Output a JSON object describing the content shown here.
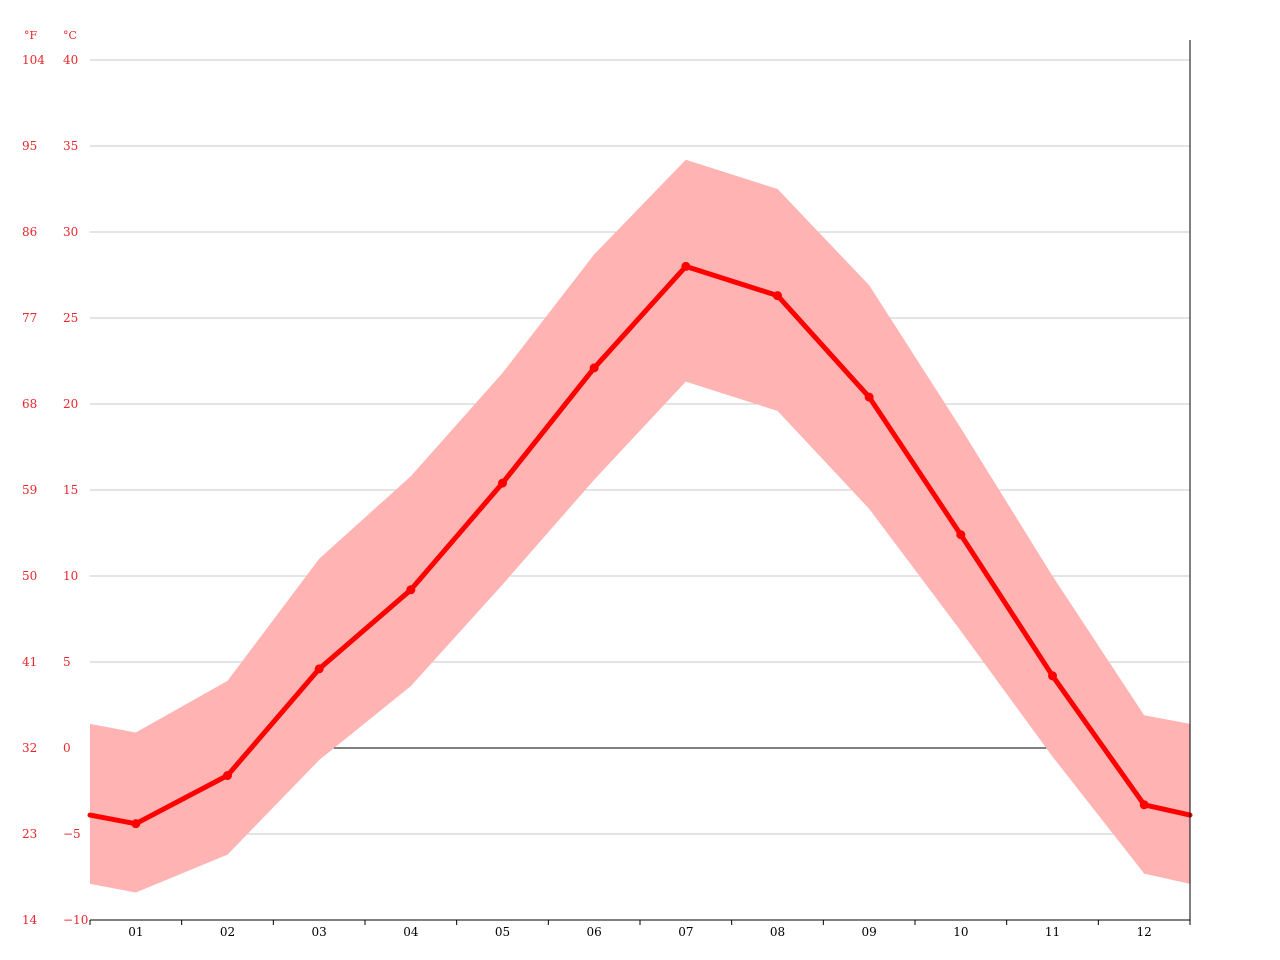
{
  "chart_data": {
    "type": "line",
    "title": "",
    "xlabel": "",
    "ylabel": "",
    "unit_labels": {
      "fahrenheit": "°F",
      "celsius": "°C"
    },
    "categories": [
      "01",
      "02",
      "03",
      "04",
      "05",
      "06",
      "07",
      "08",
      "09",
      "10",
      "11",
      "12"
    ],
    "ylim": [
      -10,
      40
    ],
    "y_ticks_celsius": [
      "40",
      "35",
      "30",
      "25",
      "20",
      "15",
      "10",
      "5",
      "0",
      "−5",
      "−10"
    ],
    "y_ticks_fahrenheit": [
      "104",
      "95",
      "86",
      "77",
      "68",
      "59",
      "50",
      "41",
      "32",
      "23",
      "14"
    ],
    "y_tick_values": [
      40,
      35,
      30,
      25,
      20,
      15,
      10,
      5,
      0,
      -5,
      -10
    ],
    "series": [
      {
        "values": [
          -4.4,
          -1.6,
          4.6,
          9.2,
          15.4,
          22.1,
          28.0,
          26.3,
          20.4,
          12.4,
          4.2,
          -3.3
        ]
      }
    ],
    "band": {
      "upper": [
        0.9,
        3.9,
        11.0,
        15.8,
        21.8,
        28.7,
        34.2,
        32.5,
        26.9,
        18.6,
        10.0,
        1.9
      ],
      "lower": [
        -8.4,
        -6.2,
        -0.7,
        3.6,
        9.5,
        15.6,
        21.3,
        19.6,
        13.9,
        6.8,
        -0.5,
        -7.3
      ]
    },
    "edge_values": {
      "line": [
        -3.9,
        -3.9
      ],
      "upper": [
        1.4,
        1.4
      ],
      "lower": [
        -7.9,
        -7.9
      ]
    },
    "grid": true,
    "colors": {
      "line": "#ff0000",
      "band": "#ffb3b3",
      "grid": "#c8c8c8",
      "axis": "#000000",
      "tick_label": "#e8262b"
    }
  }
}
